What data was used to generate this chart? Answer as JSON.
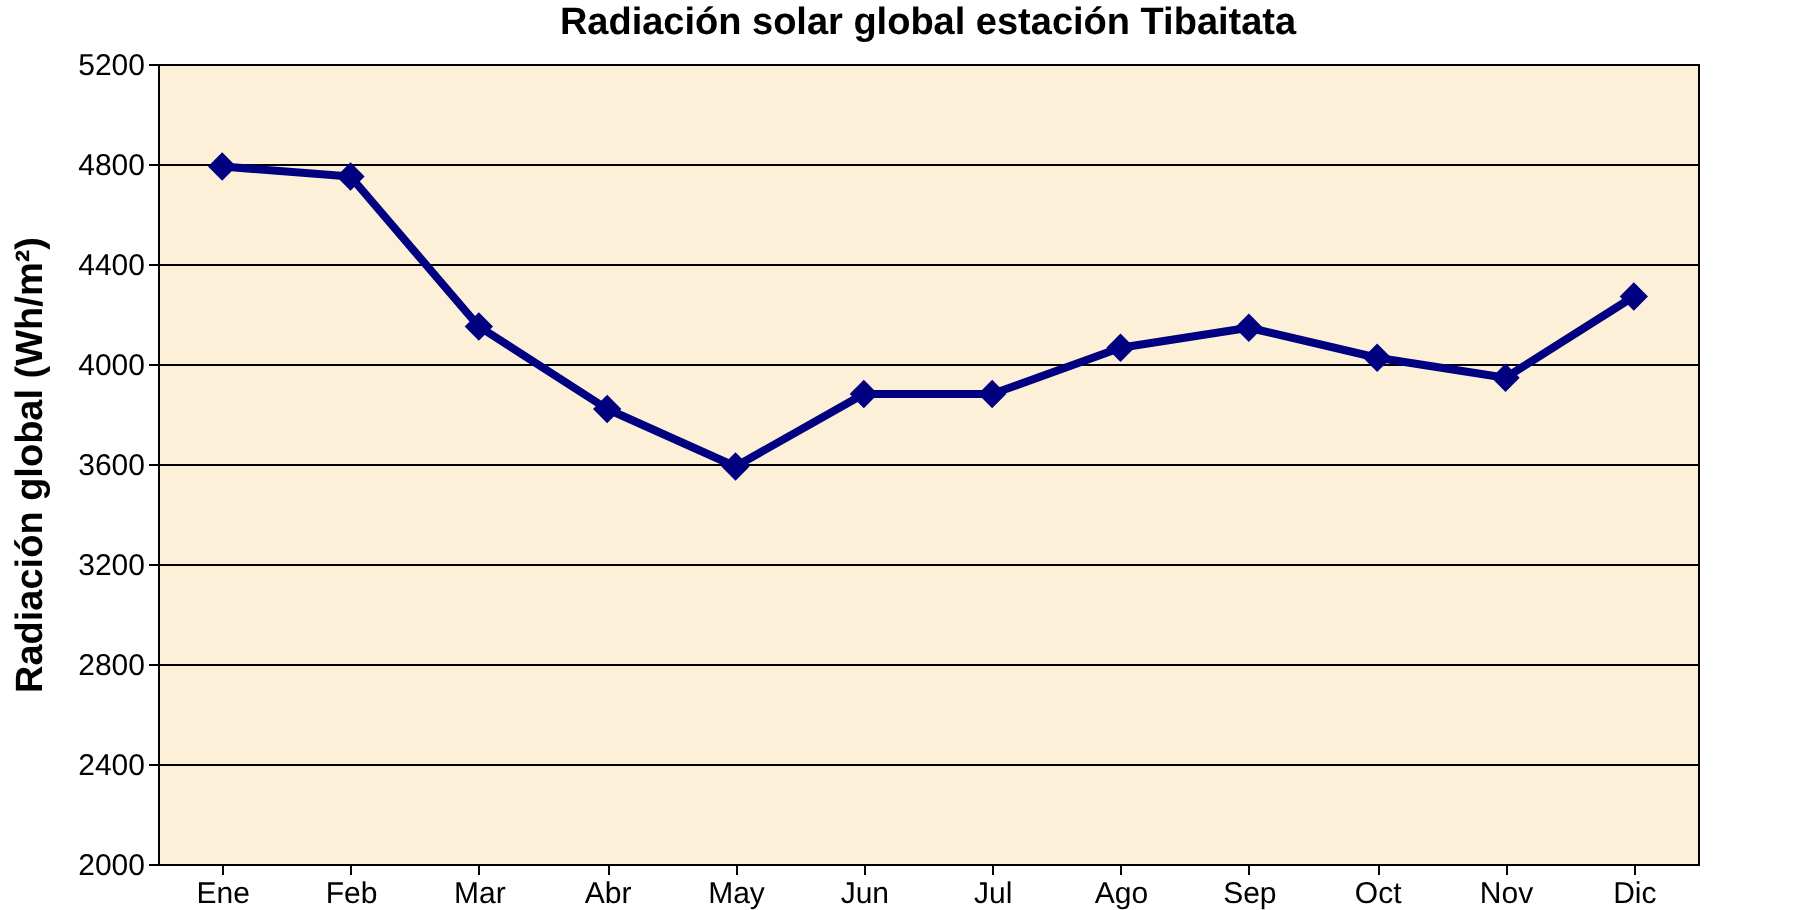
{
  "chart_data": {
    "type": "line",
    "title": "Radiación solar global estación Tibaitata",
    "ylabel": "Radiación global (Wh/m²)",
    "categories": [
      "Ene",
      "Feb",
      "Mar",
      "Abr",
      "May",
      "Jun",
      "Jul",
      "Ago",
      "Sep",
      "Oct",
      "Nov",
      "Dic"
    ],
    "series": [
      {
        "color": "#000080",
        "values": [
          4790,
          4750,
          4150,
          3820,
          3590,
          3880,
          3880,
          4065,
          4145,
          4025,
          3945,
          4270
        ]
      }
    ],
    "ylim": [
      2000,
      5200
    ],
    "yticks": [
      2000,
      2400,
      2800,
      3200,
      3600,
      4000,
      4400,
      4800,
      5200
    ],
    "grid": "y",
    "marker": "diamond",
    "line_style": "solid",
    "legend": false
  }
}
